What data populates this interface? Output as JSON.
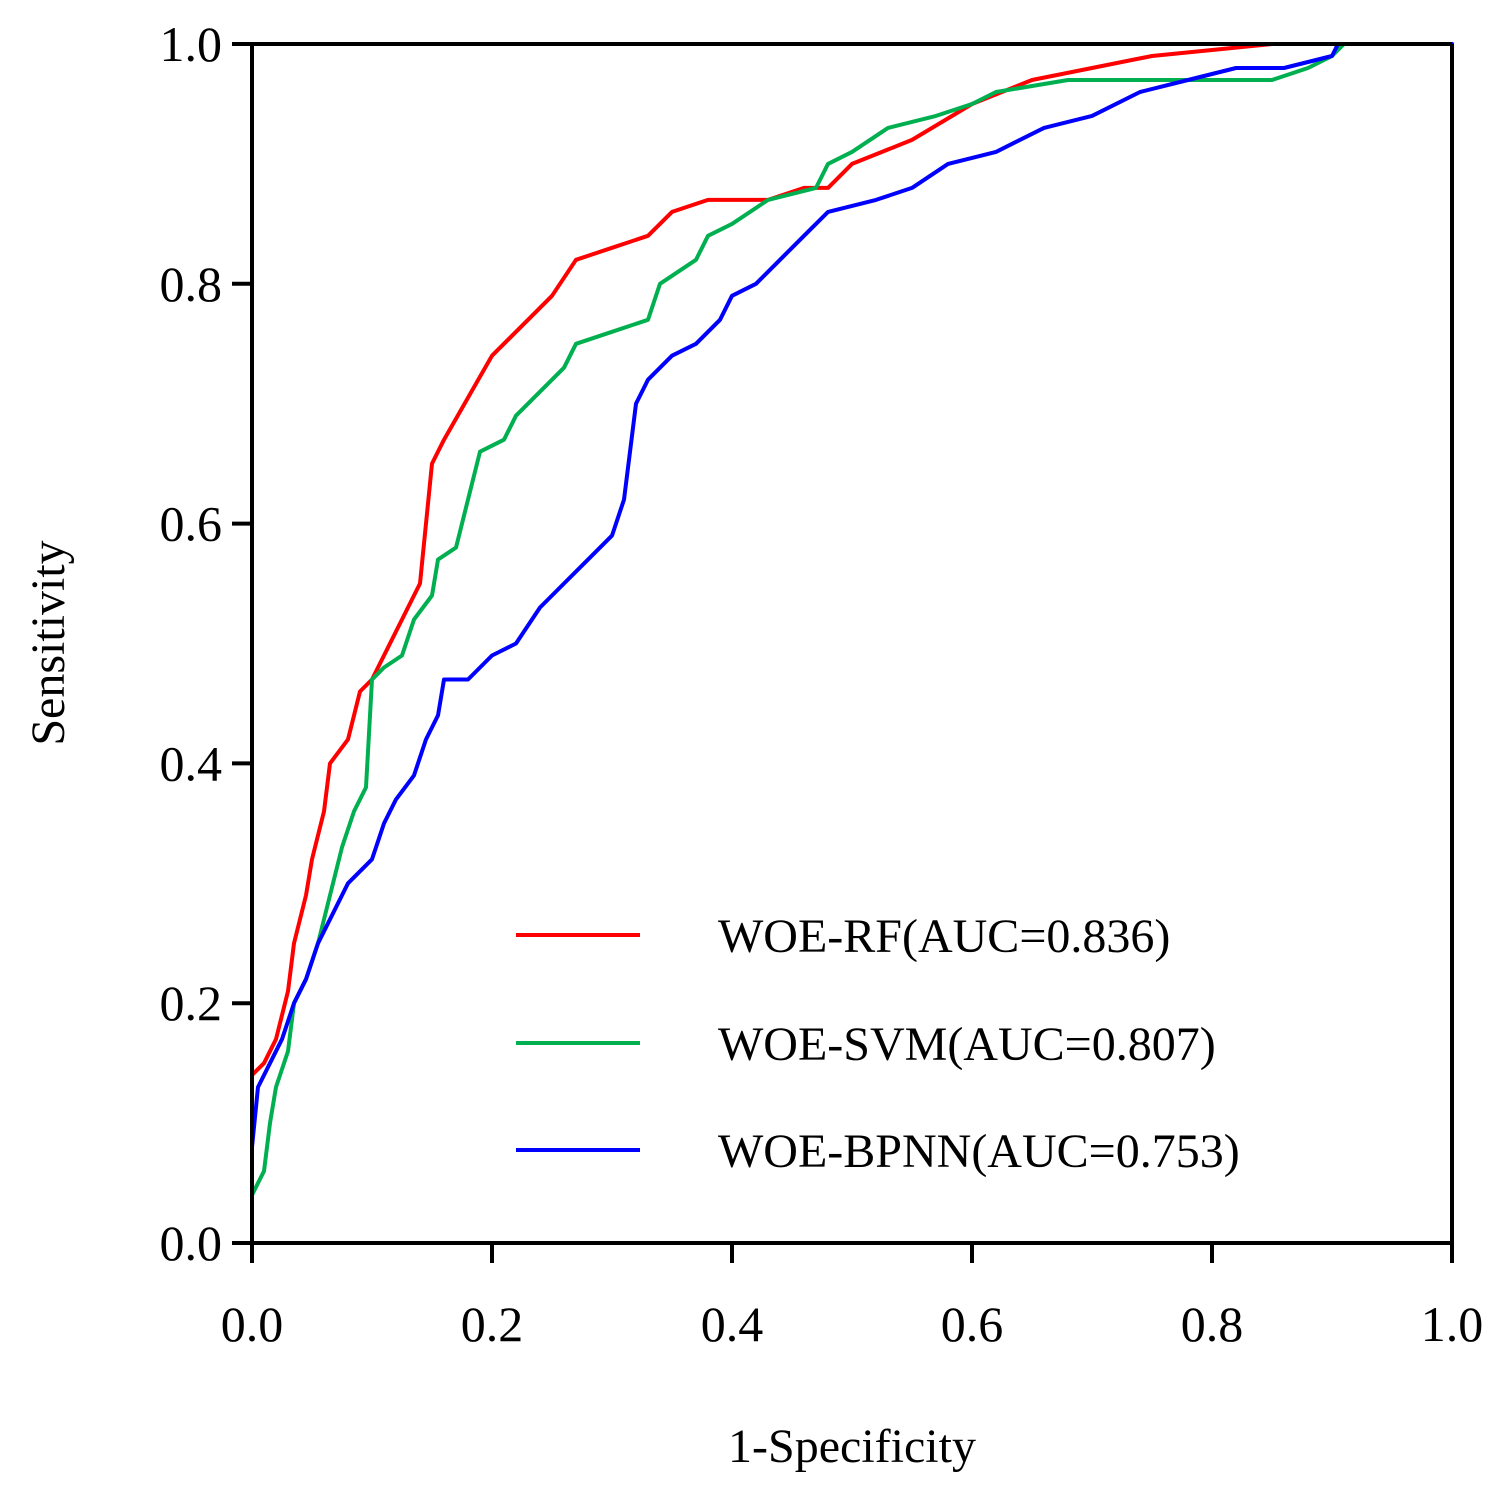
{
  "chart_data": {
    "type": "line",
    "title": "",
    "xlabel": "1-Specificity",
    "ylabel": "Sensitivity",
    "xlim": [
      0,
      1
    ],
    "ylim": [
      0,
      1
    ],
    "xticks": [
      "0.0",
      "0.2",
      "0.4",
      "0.6",
      "0.8",
      "1.0"
    ],
    "yticks": [
      "0.0",
      "0.2",
      "0.4",
      "0.6",
      "0.8",
      "1.0"
    ],
    "grid": false,
    "legend_position": "bottom-right",
    "series": [
      {
        "name": "WOE-RF(AUC=0.836)",
        "color": "#ff0000",
        "points": [
          [
            0,
            0.05
          ],
          [
            0,
            0.14
          ],
          [
            0.01,
            0.15
          ],
          [
            0.02,
            0.17
          ],
          [
            0.03,
            0.21
          ],
          [
            0.035,
            0.25
          ],
          [
            0.045,
            0.29
          ],
          [
            0.05,
            0.32
          ],
          [
            0.06,
            0.36
          ],
          [
            0.065,
            0.4
          ],
          [
            0.08,
            0.42
          ],
          [
            0.09,
            0.46
          ],
          [
            0.1,
            0.47
          ],
          [
            0.12,
            0.51
          ],
          [
            0.14,
            0.55
          ],
          [
            0.15,
            0.65
          ],
          [
            0.16,
            0.67
          ],
          [
            0.2,
            0.74
          ],
          [
            0.23,
            0.77
          ],
          [
            0.25,
            0.79
          ],
          [
            0.27,
            0.82
          ],
          [
            0.3,
            0.83
          ],
          [
            0.33,
            0.84
          ],
          [
            0.35,
            0.86
          ],
          [
            0.38,
            0.87
          ],
          [
            0.43,
            0.87
          ],
          [
            0.46,
            0.88
          ],
          [
            0.48,
            0.88
          ],
          [
            0.5,
            0.9
          ],
          [
            0.55,
            0.92
          ],
          [
            0.6,
            0.95
          ],
          [
            0.65,
            0.97
          ],
          [
            0.7,
            0.98
          ],
          [
            0.75,
            0.99
          ],
          [
            0.8,
            0.995
          ],
          [
            0.85,
            1.0
          ],
          [
            1.0,
            1.0
          ]
        ]
      },
      {
        "name": "WOE-SVM(AUC=0.807)",
        "color": "#00b050",
        "points": [
          [
            0,
            0
          ],
          [
            0,
            0.04
          ],
          [
            0.01,
            0.06
          ],
          [
            0.015,
            0.1
          ],
          [
            0.02,
            0.13
          ],
          [
            0.03,
            0.16
          ],
          [
            0.035,
            0.2
          ],
          [
            0.045,
            0.22
          ],
          [
            0.055,
            0.25
          ],
          [
            0.065,
            0.29
          ],
          [
            0.075,
            0.33
          ],
          [
            0.085,
            0.36
          ],
          [
            0.095,
            0.38
          ],
          [
            0.1,
            0.47
          ],
          [
            0.11,
            0.48
          ],
          [
            0.125,
            0.49
          ],
          [
            0.135,
            0.52
          ],
          [
            0.15,
            0.54
          ],
          [
            0.155,
            0.57
          ],
          [
            0.17,
            0.58
          ],
          [
            0.175,
            0.6
          ],
          [
            0.18,
            0.62
          ],
          [
            0.19,
            0.66
          ],
          [
            0.21,
            0.67
          ],
          [
            0.22,
            0.69
          ],
          [
            0.24,
            0.71
          ],
          [
            0.26,
            0.73
          ],
          [
            0.27,
            0.75
          ],
          [
            0.3,
            0.76
          ],
          [
            0.33,
            0.77
          ],
          [
            0.34,
            0.8
          ],
          [
            0.37,
            0.82
          ],
          [
            0.38,
            0.84
          ],
          [
            0.4,
            0.85
          ],
          [
            0.43,
            0.87
          ],
          [
            0.47,
            0.88
          ],
          [
            0.48,
            0.9
          ],
          [
            0.5,
            0.91
          ],
          [
            0.53,
            0.93
          ],
          [
            0.57,
            0.94
          ],
          [
            0.6,
            0.95
          ],
          [
            0.62,
            0.96
          ],
          [
            0.68,
            0.97
          ],
          [
            0.85,
            0.97
          ],
          [
            0.88,
            0.98
          ],
          [
            0.9,
            0.99
          ],
          [
            0.91,
            1.0
          ],
          [
            1.0,
            1.0
          ]
        ]
      },
      {
        "name": "WOE-BPNN(AUC=0.753)",
        "color": "#0000ff",
        "points": [
          [
            0,
            0
          ],
          [
            0,
            0.08
          ],
          [
            0.005,
            0.13
          ],
          [
            0.015,
            0.15
          ],
          [
            0.025,
            0.17
          ],
          [
            0.035,
            0.2
          ],
          [
            0.045,
            0.22
          ],
          [
            0.055,
            0.25
          ],
          [
            0.065,
            0.27
          ],
          [
            0.08,
            0.3
          ],
          [
            0.1,
            0.32
          ],
          [
            0.11,
            0.35
          ],
          [
            0.12,
            0.37
          ],
          [
            0.135,
            0.39
          ],
          [
            0.145,
            0.42
          ],
          [
            0.155,
            0.44
          ],
          [
            0.16,
            0.47
          ],
          [
            0.18,
            0.47
          ],
          [
            0.2,
            0.49
          ],
          [
            0.22,
            0.5
          ],
          [
            0.24,
            0.53
          ],
          [
            0.26,
            0.55
          ],
          [
            0.28,
            0.57
          ],
          [
            0.3,
            0.59
          ],
          [
            0.31,
            0.62
          ],
          [
            0.315,
            0.66
          ],
          [
            0.32,
            0.7
          ],
          [
            0.33,
            0.72
          ],
          [
            0.35,
            0.74
          ],
          [
            0.37,
            0.75
          ],
          [
            0.39,
            0.77
          ],
          [
            0.4,
            0.79
          ],
          [
            0.42,
            0.8
          ],
          [
            0.44,
            0.82
          ],
          [
            0.46,
            0.84
          ],
          [
            0.48,
            0.86
          ],
          [
            0.52,
            0.87
          ],
          [
            0.55,
            0.88
          ],
          [
            0.58,
            0.9
          ],
          [
            0.62,
            0.91
          ],
          [
            0.66,
            0.93
          ],
          [
            0.7,
            0.94
          ],
          [
            0.74,
            0.96
          ],
          [
            0.78,
            0.97
          ],
          [
            0.82,
            0.98
          ],
          [
            0.86,
            0.98
          ],
          [
            0.9,
            0.99
          ],
          [
            0.905,
            1.0
          ],
          [
            1.0,
            1.0
          ]
        ]
      }
    ]
  }
}
